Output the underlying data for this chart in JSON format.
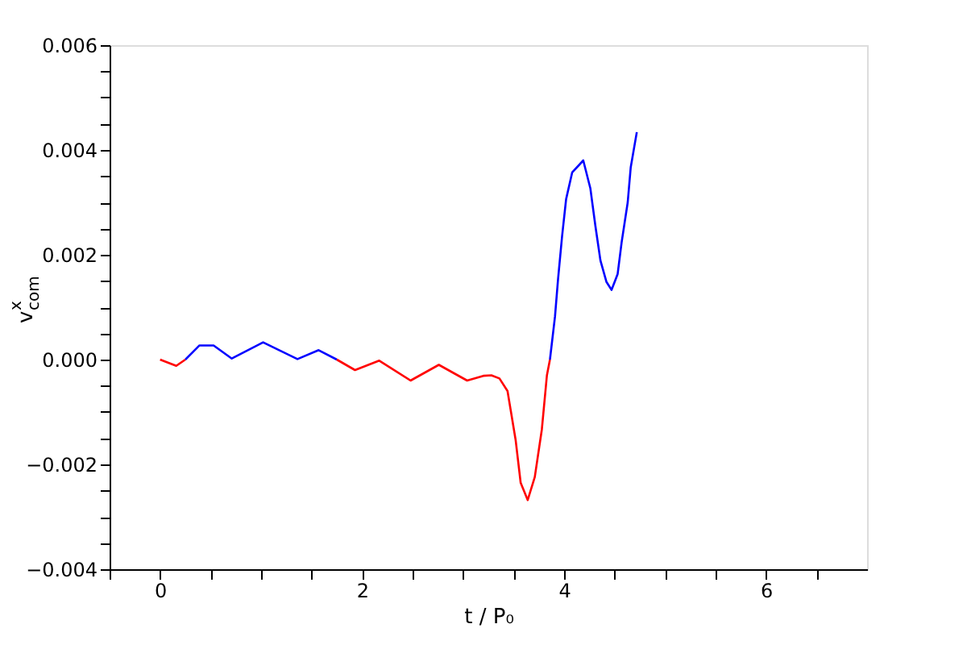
{
  "chart_data": {
    "type": "line",
    "xlabel": "t / P₀",
    "ylabel": "v$^{x}$$_{com}$",
    "xlim": [
      -0.5,
      7.0
    ],
    "ylim": [
      -0.004,
      0.006
    ],
    "xticks": [
      {
        "value": -0.5,
        "label": null
      },
      0,
      {
        "value": 0.5,
        "label": null
      },
      {
        "value": 1,
        "label": null
      },
      {
        "value": 1.5,
        "label": null
      },
      2,
      {
        "value": 2.5,
        "label": null
      },
      {
        "value": 3,
        "label": null
      },
      {
        "value": 3.5,
        "label": null
      },
      4,
      {
        "value": 4.5,
        "label": null
      },
      {
        "value": 5,
        "label": null
      },
      {
        "value": 5.5,
        "label": null
      },
      6,
      {
        "value": 6.5,
        "label": null
      }
    ],
    "yticks": [
      {
        "value": -0.004,
        "label": "−0.004"
      },
      {
        "value": -0.0035,
        "label": null
      },
      {
        "value": -0.003,
        "label": null
      },
      {
        "value": -0.0025,
        "label": null
      },
      {
        "value": -0.002,
        "label": "−0.002"
      },
      {
        "value": -0.0015,
        "label": null
      },
      {
        "value": -0.001,
        "label": null
      },
      {
        "value": -0.0005,
        "label": null
      },
      {
        "value": 0.0,
        "label": "0.000"
      },
      {
        "value": 0.0005,
        "label": null
      },
      {
        "value": 0.001,
        "label": null
      },
      {
        "value": 0.0015,
        "label": null
      },
      0.002,
      {
        "value": 0.0025,
        "label": null
      },
      {
        "value": 0.003,
        "label": null
      },
      {
        "value": 0.0035,
        "label": null
      },
      0.004,
      {
        "value": 0.0045,
        "label": null
      },
      {
        "value": 0.005,
        "label": null
      },
      {
        "value": 0.0055,
        "label": null
      },
      0.006
    ],
    "grid": false,
    "legend": false,
    "marker": "none",
    "line_style": "solid",
    "series": [
      {
        "color": "#ff0000",
        "x": [
          0,
          0.16,
          0.25
        ],
        "values": [
          0.0,
          -0.00012,
          0.0
        ]
      },
      {
        "color": "#0000ff",
        "x": [
          0.25,
          0.39,
          0.53,
          0.71,
          1.02,
          1.36,
          1.57,
          1.75
        ],
        "values": [
          0.0,
          0.00027,
          0.00027,
          2e-05,
          0.00033,
          1e-05,
          0.00018,
          0.0
        ]
      },
      {
        "color": "#ff0000",
        "x": [
          1.75,
          1.93,
          2.17,
          2.48,
          2.76,
          3.04,
          3.2,
          3.28,
          3.36,
          3.44,
          3.52,
          3.57,
          3.64,
          3.71,
          3.78,
          3.83,
          3.86
        ],
        "values": [
          0.0,
          -0.0002,
          -2e-05,
          -0.0004,
          -0.0001,
          -0.0004,
          -0.00031,
          -0.0003,
          -0.00036,
          -0.0006,
          -0.00153,
          -0.00235,
          -0.00268,
          -0.00224,
          -0.00133,
          -0.0003,
          0.0
        ]
      },
      {
        "color": "#0000ff",
        "x": [
          3.86,
          3.91,
          3.94,
          3.98,
          4.02,
          4.08,
          4.19,
          4.26,
          4.31,
          4.36,
          4.42,
          4.47,
          4.53,
          4.57,
          4.63,
          4.66,
          4.72
        ],
        "values": [
          0.0,
          0.00082,
          0.00153,
          0.00235,
          0.00306,
          0.00357,
          0.0038,
          0.00327,
          0.00255,
          0.00189,
          0.00148,
          0.00133,
          0.00163,
          0.00224,
          0.003,
          0.00367,
          0.00434
        ]
      }
    ]
  }
}
